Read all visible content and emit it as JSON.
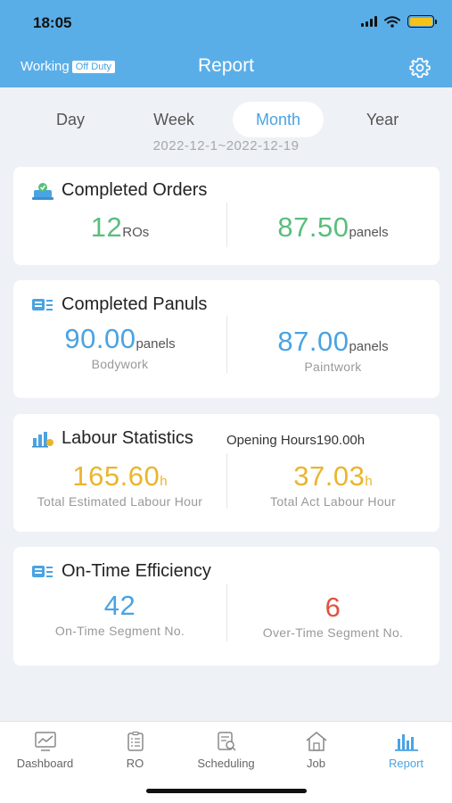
{
  "status_bar": {
    "time": "18:05"
  },
  "header": {
    "working_label": "Working",
    "duty_badge": "Off Duty",
    "title": "Report"
  },
  "period_tabs": [
    {
      "label": "Day",
      "active": false
    },
    {
      "label": "Week",
      "active": false
    },
    {
      "label": "Month",
      "active": true
    },
    {
      "label": "Year",
      "active": false
    }
  ],
  "date_range": "2022-12-1~2022-12-19",
  "completed_orders": {
    "title": "Completed Orders",
    "ro_count": "12",
    "ro_unit": "ROs",
    "panels": "87.50",
    "panels_unit": "panels"
  },
  "completed_panels": {
    "title": "Completed Panuls",
    "bodywork_value": "90.00",
    "bodywork_unit": "panels",
    "bodywork_label": "Bodywork",
    "paintwork_value": "87.00",
    "paintwork_unit": "panels",
    "paintwork_label": "Paintwork"
  },
  "labour_statistics": {
    "title": "Labour Statistics",
    "opening_hours": "Opening Hours190.00h",
    "estimated_value": "165.60",
    "estimated_unit": "h",
    "estimated_label": "Total Estimated Labour Hour",
    "actual_value": "37.03",
    "actual_unit": "h",
    "actual_label": "Total Act Labour Hour"
  },
  "ontime_efficiency": {
    "title": "On-Time Efficiency",
    "ontime_value": "42",
    "ontime_label": "On-Time Segment No.",
    "overtime_value": "6",
    "overtime_label": "Over-Time Segment No."
  },
  "tab_bar": [
    {
      "label": "Dashboard",
      "icon": "dashboard-icon",
      "active": false
    },
    {
      "label": "RO",
      "icon": "ro-icon",
      "active": false
    },
    {
      "label": "Scheduling",
      "icon": "scheduling-icon",
      "active": false
    },
    {
      "label": "Job",
      "icon": "job-icon",
      "active": false
    },
    {
      "label": "Report",
      "icon": "report-icon",
      "active": true
    }
  ],
  "colors": {
    "header": "#5aaee8",
    "accent_blue": "#4aa3e2",
    "green": "#59be7c",
    "gold": "#eab52e",
    "red": "#e0543f",
    "background": "#eef1f5"
  }
}
